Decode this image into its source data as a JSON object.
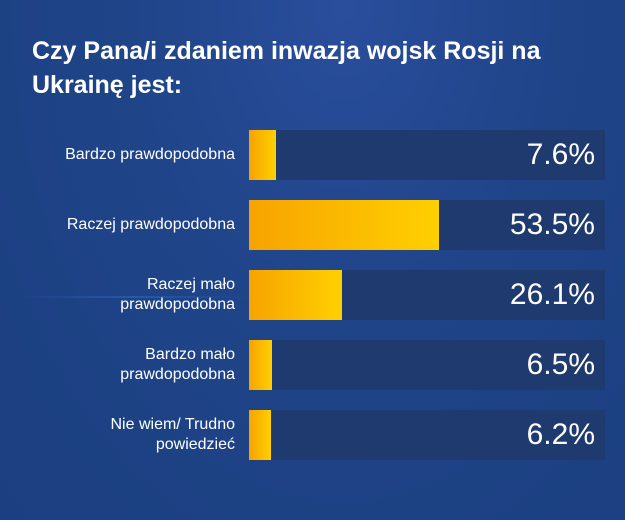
{
  "chart_data": {
    "type": "bar",
    "orientation": "horizontal",
    "title": "Czy Pana/i zdaniem inwazja wojsk Rosji na Ukrainę jest:",
    "categories": [
      "Bardzo prawdopodobna",
      "Raczej prawdopodobna",
      "Raczej mało prawdopodobna",
      "Bardzo mało prawdopodobna",
      "Nie wiem/ Trudno powiedzieć"
    ],
    "values": [
      7.6,
      53.5,
      26.1,
      6.5,
      6.2
    ],
    "value_labels": [
      "7.6%",
      "53.5%",
      "26.1%",
      "6.5%",
      "6.2%"
    ],
    "unit": "%",
    "xlim": [
      0,
      100
    ],
    "xlabel": "",
    "ylabel": "",
    "colors": {
      "bar_start": "#f7a300",
      "bar_end": "#ffd000",
      "track": "#1f3a6e",
      "text": "#ffffff"
    }
  }
}
